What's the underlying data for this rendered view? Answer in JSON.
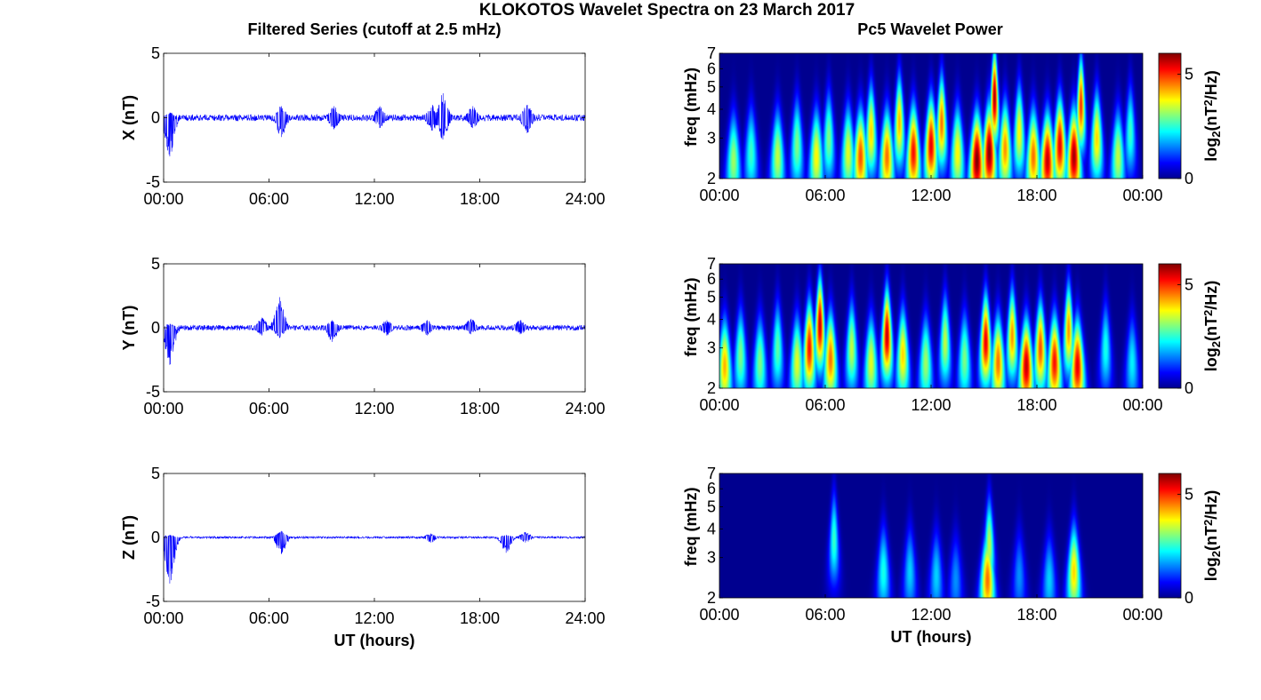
{
  "figure": {
    "title": "KLOKOTOS Wavelet Spectra on 23 March 2017",
    "left_column_title": "Filtered Series (cutoff at 2.5 mHz)",
    "right_column_title": "Pc5 Wavelet Power"
  },
  "colors": {
    "series_line": "#0000ff",
    "axes": "#000000",
    "colormap": "jet",
    "colormap_low": "#00008f",
    "colormap_high": "#800000"
  },
  "chart_data": [
    {
      "type": "line",
      "component": "X",
      "ylabel": "X (nT)",
      "xlabel": "",
      "xlim": [
        0,
        24
      ],
      "ylim": [
        -5,
        5
      ],
      "xticks": [
        "00:00",
        "06:00",
        "12:00",
        "18:00",
        "24:00"
      ],
      "yticks": [
        "-5",
        "0",
        "5"
      ],
      "baseline_noise_nT": 0.25,
      "events": [
        {
          "t": 0.35,
          "min": -3.0,
          "max": 0.4
        },
        {
          "t": 6.7,
          "min": -1.5,
          "max": 0.9
        },
        {
          "t": 9.7,
          "min": -0.9,
          "max": 0.9
        },
        {
          "t": 12.3,
          "min": -0.8,
          "max": 0.9
        },
        {
          "t": 15.3,
          "min": -1.0,
          "max": 1.0
        },
        {
          "t": 15.9,
          "min": -1.7,
          "max": 1.9
        },
        {
          "t": 17.6,
          "min": -0.8,
          "max": 0.9
        },
        {
          "t": 20.7,
          "min": -1.2,
          "max": 1.0
        }
      ]
    },
    {
      "type": "line",
      "component": "Y",
      "ylabel": "Y (nT)",
      "xlabel": "",
      "xlim": [
        0,
        24
      ],
      "ylim": [
        -5,
        5
      ],
      "xticks": [
        "00:00",
        "06:00",
        "12:00",
        "18:00",
        "24:00"
      ],
      "yticks": [
        "-5",
        "0",
        "5"
      ],
      "baseline_noise_nT": 0.2,
      "events": [
        {
          "t": 0.35,
          "min": -2.9,
          "max": 0.3
        },
        {
          "t": 5.6,
          "min": -0.6,
          "max": 0.8
        },
        {
          "t": 6.6,
          "min": -0.8,
          "max": 2.4
        },
        {
          "t": 9.6,
          "min": -1.1,
          "max": 0.6
        },
        {
          "t": 12.7,
          "min": -0.6,
          "max": 0.6
        },
        {
          "t": 15.0,
          "min": -0.6,
          "max": 0.6
        },
        {
          "t": 17.5,
          "min": -0.5,
          "max": 0.7
        },
        {
          "t": 20.3,
          "min": -0.5,
          "max": 0.6
        }
      ]
    },
    {
      "type": "line",
      "component": "Z",
      "ylabel": "Z (nT)",
      "xlabel": "UT (hours)",
      "xlim": [
        0,
        24
      ],
      "ylim": [
        -5,
        5
      ],
      "xticks": [
        "00:00",
        "06:00",
        "12:00",
        "18:00",
        "24:00"
      ],
      "yticks": [
        "-5",
        "0",
        "5"
      ],
      "baseline_noise_nT": 0.08,
      "events": [
        {
          "t": 0.35,
          "min": -3.6,
          "max": 0.2
        },
        {
          "t": 6.7,
          "min": -1.3,
          "max": 0.5
        },
        {
          "t": 15.2,
          "min": -0.4,
          "max": 0.3
        },
        {
          "t": 19.5,
          "min": -1.2,
          "max": 0.2
        },
        {
          "t": 20.6,
          "min": -0.4,
          "max": 0.4
        }
      ]
    },
    {
      "type": "heatmap",
      "component": "X",
      "ylabel": "freq (mHz)",
      "xlabel": "",
      "xlim": [
        0,
        24
      ],
      "ylim": [
        2,
        7
      ],
      "yscale": "log",
      "xticks": [
        "00:00",
        "06:00",
        "12:00",
        "18:00",
        "00:00"
      ],
      "yticks": [
        "2",
        "3",
        "4",
        "5",
        "6",
        "7"
      ],
      "colorbar_label": "log2(nT^2/Hz)",
      "colorbar_ticks": [
        "0",
        "5"
      ],
      "clim": [
        0,
        6
      ],
      "blobs": [
        {
          "t": 0.8,
          "f": 2.4,
          "p": 3.2
        },
        {
          "t": 1.8,
          "f": 2.6,
          "p": 2.6
        },
        {
          "t": 3.3,
          "f": 2.5,
          "p": 3.4
        },
        {
          "t": 4.4,
          "f": 2.8,
          "p": 3.0
        },
        {
          "t": 5.5,
          "f": 2.5,
          "p": 3.8
        },
        {
          "t": 6.2,
          "f": 3.0,
          "p": 3.0
        },
        {
          "t": 7.3,
          "f": 2.6,
          "p": 3.6
        },
        {
          "t": 8.0,
          "f": 2.5,
          "p": 4.8
        },
        {
          "t": 8.6,
          "f": 3.2,
          "p": 4.0
        },
        {
          "t": 9.5,
          "f": 2.5,
          "p": 4.6
        },
        {
          "t": 10.2,
          "f": 3.5,
          "p": 4.2
        },
        {
          "t": 11.0,
          "f": 2.6,
          "p": 5.2
        },
        {
          "t": 12.0,
          "f": 2.8,
          "p": 5.4
        },
        {
          "t": 12.6,
          "f": 3.5,
          "p": 4.6
        },
        {
          "t": 13.5,
          "f": 2.6,
          "p": 3.8
        },
        {
          "t": 14.6,
          "f": 2.4,
          "p": 6.0
        },
        {
          "t": 15.3,
          "f": 2.6,
          "p": 6.0
        },
        {
          "t": 15.6,
          "f": 4.5,
          "p": 5.8
        },
        {
          "t": 16.2,
          "f": 2.7,
          "p": 4.4
        },
        {
          "t": 17.0,
          "f": 3.2,
          "p": 3.8
        },
        {
          "t": 17.8,
          "f": 2.5,
          "p": 4.6
        },
        {
          "t": 18.6,
          "f": 2.4,
          "p": 5.6
        },
        {
          "t": 19.3,
          "f": 2.8,
          "p": 5.4
        },
        {
          "t": 20.1,
          "f": 2.5,
          "p": 5.8
        },
        {
          "t": 20.5,
          "f": 4.2,
          "p": 5.0
        },
        {
          "t": 21.4,
          "f": 3.0,
          "p": 4.0
        },
        {
          "t": 22.6,
          "f": 2.5,
          "p": 3.4
        },
        {
          "t": 23.3,
          "f": 3.2,
          "p": 2.6
        }
      ]
    },
    {
      "type": "heatmap",
      "component": "Y",
      "ylabel": "freq (mHz)",
      "xlabel": "",
      "xlim": [
        0,
        24
      ],
      "ylim": [
        2,
        7
      ],
      "yscale": "log",
      "xticks": [
        "00:00",
        "06:00",
        "12:00",
        "18:00",
        "00:00"
      ],
      "yticks": [
        "2",
        "3",
        "4",
        "5",
        "6",
        "7"
      ],
      "colorbar_label": "log2(nT^2/Hz)",
      "colorbar_ticks": [
        "0",
        "5"
      ],
      "clim": [
        0,
        6
      ],
      "blobs": [
        {
          "t": 0.3,
          "f": 2.5,
          "p": 4.2
        },
        {
          "t": 1.2,
          "f": 2.8,
          "p": 3.0
        },
        {
          "t": 2.3,
          "f": 2.6,
          "p": 3.0
        },
        {
          "t": 3.3,
          "f": 3.0,
          "p": 2.8
        },
        {
          "t": 4.4,
          "f": 2.6,
          "p": 3.6
        },
        {
          "t": 5.1,
          "f": 3.0,
          "p": 5.2
        },
        {
          "t": 5.7,
          "f": 3.8,
          "p": 5.6
        },
        {
          "t": 6.3,
          "f": 2.7,
          "p": 4.6
        },
        {
          "t": 7.5,
          "f": 3.0,
          "p": 3.4
        },
        {
          "t": 8.6,
          "f": 2.6,
          "p": 3.6
        },
        {
          "t": 9.5,
          "f": 3.4,
          "p": 5.6
        },
        {
          "t": 10.4,
          "f": 2.8,
          "p": 4.0
        },
        {
          "t": 11.7,
          "f": 2.6,
          "p": 3.2
        },
        {
          "t": 12.8,
          "f": 3.2,
          "p": 3.4
        },
        {
          "t": 13.9,
          "f": 2.7,
          "p": 3.0
        },
        {
          "t": 15.1,
          "f": 3.2,
          "p": 5.4
        },
        {
          "t": 15.8,
          "f": 2.6,
          "p": 4.6
        },
        {
          "t": 16.6,
          "f": 3.4,
          "p": 4.4
        },
        {
          "t": 17.4,
          "f": 2.5,
          "p": 5.6
        },
        {
          "t": 18.2,
          "f": 3.0,
          "p": 4.8
        },
        {
          "t": 19.0,
          "f": 2.6,
          "p": 5.2
        },
        {
          "t": 19.8,
          "f": 3.6,
          "p": 4.4
        },
        {
          "t": 20.3,
          "f": 2.5,
          "p": 5.4
        },
        {
          "t": 21.9,
          "f": 3.0,
          "p": 2.4
        },
        {
          "t": 23.4,
          "f": 2.6,
          "p": 2.2
        }
      ]
    },
    {
      "type": "heatmap",
      "component": "Z",
      "ylabel": "freq (mHz)",
      "xlabel": "UT (hours)",
      "xlim": [
        0,
        24
      ],
      "ylim": [
        2,
        7
      ],
      "yscale": "log",
      "xticks": [
        "00:00",
        "06:00",
        "12:00",
        "18:00",
        "00:00"
      ],
      "yticks": [
        "2",
        "3",
        "4",
        "5",
        "6",
        "7"
      ],
      "colorbar_label": "log2(nT^2/Hz)",
      "colorbar_ticks": [
        "0",
        "5"
      ],
      "clim": [
        0,
        6
      ],
      "blobs": [
        {
          "t": 6.5,
          "f": 3.6,
          "p": 2.6
        },
        {
          "t": 9.3,
          "f": 2.6,
          "p": 2.4
        },
        {
          "t": 10.8,
          "f": 2.6,
          "p": 2.0
        },
        {
          "t": 12.3,
          "f": 2.5,
          "p": 2.0
        },
        {
          "t": 13.4,
          "f": 2.4,
          "p": 1.6
        },
        {
          "t": 15.2,
          "f": 2.4,
          "p": 4.6
        },
        {
          "t": 15.3,
          "f": 3.4,
          "p": 3.4
        },
        {
          "t": 17.0,
          "f": 2.5,
          "p": 1.6
        },
        {
          "t": 18.7,
          "f": 2.4,
          "p": 2.0
        },
        {
          "t": 20.1,
          "f": 2.6,
          "p": 4.0
        }
      ]
    }
  ]
}
